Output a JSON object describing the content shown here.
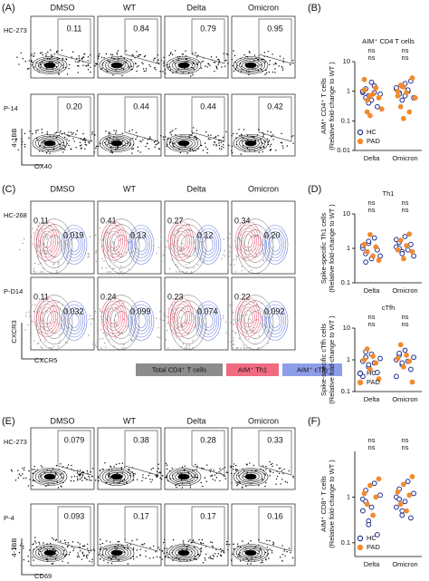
{
  "panel_a": {
    "label": "(A)",
    "columns": [
      "DMSO",
      "WT",
      "Delta",
      "Omicron"
    ],
    "rows": [
      {
        "name": "HC-273",
        "gates": [
          "0.11",
          "0.84",
          "0.79",
          "0.95"
        ]
      },
      {
        "name": "P-14",
        "gates": [
          "0.20",
          "0.44",
          "0.44",
          "0.42"
        ]
      }
    ],
    "x_axis": "OX40",
    "y_axis": "4-1BB"
  },
  "panel_c": {
    "label": "(C)",
    "columns": [
      "DMSO",
      "WT",
      "Delta",
      "Omicron"
    ],
    "th1_color": "#e0303a",
    "tfh_color": "#2e55a6",
    "rows": [
      {
        "name": "HC-268",
        "th1": [
          "0.11",
          "0.41",
          "0.27",
          "0.34"
        ],
        "tfh": [
          "0.019",
          "0.13",
          "0.12",
          "0.20"
        ]
      },
      {
        "name": "P-D14",
        "th1": [
          "0.11",
          "0.24",
          "0.23",
          "0.22"
        ],
        "tfh": [
          "0.032",
          "0.099",
          "0.074",
          "0.092"
        ]
      }
    ],
    "x_axis": "CXCR5",
    "y_axis": "CXCR3",
    "legend": [
      {
        "label": "Total CD4⁺ T cells",
        "color": "#8c8c8c"
      },
      {
        "label": "AIM⁺ Th1",
        "color": "#f06a80"
      },
      {
        "label": "AIM⁺ cTfh",
        "color": "#8d9de8"
      }
    ]
  },
  "panel_e": {
    "label": "(E)",
    "columns": [
      "DMSO",
      "WT",
      "Delta",
      "Omicron"
    ],
    "rows": [
      {
        "name": "HC-273",
        "gates": [
          "0.079",
          "0.38",
          "0.28",
          "0.33"
        ]
      },
      {
        "name": "P-4",
        "gates": [
          "0.093",
          "0.17",
          "0.17",
          "0.16"
        ]
      }
    ],
    "x_axis": "CD69",
    "y_axis": "4-1BB"
  },
  "panel_b": {
    "label": "(B)",
    "type": "scatter",
    "title": "AIM⁺ CD4 T cells",
    "y_label": "AIM⁺ CD4⁺ T cells",
    "y_label2": "(Relative fold-change to WT )",
    "categories": [
      "Delta",
      "Omicron"
    ],
    "log_scale": true,
    "ylim": [
      0.01,
      10
    ],
    "yticks": [
      0.01,
      0.1,
      1,
      10
    ],
    "legend": true,
    "series": [
      {
        "name": "HC",
        "color": "#1f2f8f",
        "annotations": [
          "ns",
          "ns"
        ],
        "values": [
          [
            0.9,
            1.2,
            0.7,
            0.5,
            1.5,
            0.3,
            0.8,
            1.0,
            0.6,
            0.4,
            2.0,
            0.9
          ],
          [
            1.2,
            0.9,
            1.5,
            0.7,
            1.0,
            2.2,
            0.6,
            1.3,
            0.8,
            0.5,
            1.8,
            1.1
          ]
        ]
      },
      {
        "name": "PAD",
        "color": "#f28a2e",
        "annotations": [
          "ns",
          "ns"
        ],
        "values": [
          [
            1.1,
            0.2,
            0.15,
            0.8,
            1.3,
            0.6,
            0.25,
            2.5,
            0.5,
            0.7
          ],
          [
            1.0,
            0.3,
            1.4,
            0.9,
            0.2,
            2.8,
            0.6,
            0.7,
            1.6,
            0.12
          ]
        ]
      }
    ]
  },
  "panel_d": {
    "label": "(D)",
    "charts": [
      {
        "type": "scatter",
        "title": "Th1",
        "y_label": "Spike-specific Th1 cells",
        "y_label2": "(Relative fold-change to WT )",
        "categories": [
          "Delta",
          "Omicron"
        ],
        "log_scale": true,
        "ylim": [
          0.1,
          10
        ],
        "yticks": [
          0.1,
          1,
          10
        ],
        "legend": false,
        "series": [
          {
            "name": "HC",
            "color": "#1f2f8f",
            "annotations": [
              "ns",
              "ns"
            ],
            "values": [
              [
                1.0,
                0.7,
                1.4,
                0.5,
                2.0,
                0.9,
                0.6,
                1.2,
                0.4,
                1.6
              ],
              [
                1.1,
                1.5,
                0.8,
                2.2,
                0.9,
                1.3,
                0.6,
                1.8,
                1.0,
                0.7
              ]
            ]
          },
          {
            "name": "PAD",
            "color": "#f28a2e",
            "annotations": [
              "ns",
              "ns"
            ],
            "values": [
              [
                1.3,
                0.8,
                2.5,
                0.6,
                1.1,
                0.45
              ],
              [
                0.9,
                1.7,
                0.5,
                1.2,
                2.6,
                0.8
              ]
            ]
          }
        ]
      },
      {
        "type": "scatter",
        "title": "cTfh",
        "y_label": "Spike-specific  cTfh cells",
        "y_label2": "(Relative fold-change to WT )",
        "categories": [
          "Delta",
          "Omicron"
        ],
        "log_scale": true,
        "ylim": [
          0.1,
          10
        ],
        "yticks": [
          0.1,
          1,
          10
        ],
        "legend": true,
        "series": [
          {
            "name": "HC",
            "color": "#1f2f8f",
            "annotations": [
              "ns",
              "ns"
            ],
            "values": [
              [
                0.9,
                1.2,
                0.6,
                1.5,
                0.8,
                0.4,
                1.1,
                0.3,
                1.8,
                0.7
              ],
              [
                1.0,
                1.4,
                0.7,
                2.0,
                0.9,
                0.5,
                1.2,
                0.3,
                1.6,
                0.8
              ]
            ]
          },
          {
            "name": "PAD",
            "color": "#f28a2e",
            "annotations": [
              "ns",
              "ns"
            ],
            "values": [
              [
                1.0,
                2.2,
                0.5,
                1.3,
                0.8,
                0.25
              ],
              [
                1.1,
                3.0,
                0.6,
                1.4,
                0.9,
                0.2
              ]
            ]
          }
        ]
      }
    ]
  },
  "panel_f": {
    "label": "(F)",
    "type": "scatter",
    "y_label": "AIM⁺ CD8⁺ T cells",
    "y_label2": "(Relative fold-change to WT )",
    "categories": [
      "Delta",
      "Omicron"
    ],
    "log_scale": true,
    "ylim": [
      0.05,
      10
    ],
    "yticks": [
      0.1,
      1
    ],
    "legend": true,
    "series": [
      {
        "name": "HC",
        "color": "#1f2f8f",
        "annotations": [
          "ns",
          "ns"
        ],
        "values": [
          [
            0.9,
            1.4,
            0.3,
            0.6,
            2.0,
            0.15,
            1.1,
            0.5,
            0.8,
            0.25
          ],
          [
            1.0,
            1.5,
            0.5,
            0.8,
            2.2,
            0.35,
            1.2,
            0.6,
            0.9,
            0.4
          ]
        ]
      },
      {
        "name": "PAD",
        "color": "#f28a2e",
        "annotations": [
          "ns",
          "ns"
        ],
        "values": [
          [
            1.2,
            0.7,
            1.8,
            0.4,
            1.0,
            2.5
          ],
          [
            1.3,
            0.7,
            1.9,
            0.5,
            1.1,
            2.8
          ]
        ]
      }
    ]
  }
}
